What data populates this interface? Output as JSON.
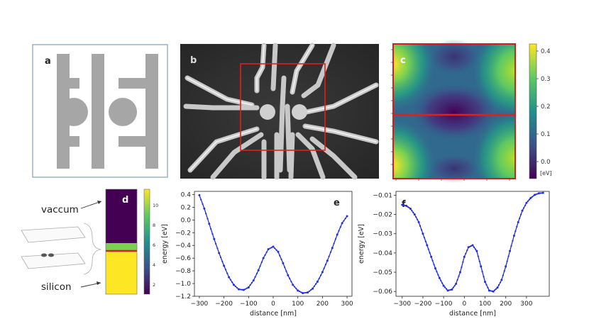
{
  "panels": {
    "a": {
      "label": "a"
    },
    "b": {
      "label": "b"
    },
    "c": {
      "label": "c",
      "colorbar_ticks": [
        "0.4",
        "0.3",
        "0.2",
        "0.1",
        "0.0"
      ],
      "unit": "[eV]"
    },
    "d": {
      "label": "d",
      "colorbar_ticks": [
        "10",
        "8",
        "6",
        "4",
        "2"
      ],
      "vacuum_label": "vaccum",
      "silicon_label": "silicon"
    },
    "e": {
      "label": "e"
    },
    "f": {
      "label": "f"
    }
  },
  "colors": {
    "gate_gray": "#a6a6a6",
    "frame_blue": "#7f9fb8",
    "highlight_red": "#e0201c",
    "curve_blue": "#1f2ee0",
    "viridis_dark": "#440154",
    "viridis_yellow": "#fde725"
  },
  "chart_data": [
    {
      "id": "e",
      "type": "line",
      "xlabel": "distance [nm]",
      "ylabel": "energy [eV]",
      "xlim": [
        -320,
        320
      ],
      "ylim": [
        -1.2,
        0.45
      ],
      "xticks": [
        -300,
        -200,
        -100,
        0,
        100,
        200,
        300
      ],
      "xtick_labels": [
        "−300",
        "−200",
        "−100",
        "0",
        "100",
        "200",
        "300"
      ],
      "yticks": [
        0.4,
        0.2,
        0.0,
        -0.2,
        -0.4,
        -0.6,
        -0.8,
        -1.0,
        -1.2
      ],
      "ytick_labels": [
        "0.4",
        "0.2",
        "0.0",
        "−0.2",
        "−0.4",
        "−0.6",
        "−0.8",
        "−1.0",
        "−1.2"
      ],
      "series": [
        {
          "x": [
            -300,
            -280,
            -260,
            -240,
            -220,
            -200,
            -180,
            -160,
            -140,
            -120,
            -100,
            -80,
            -60,
            -40,
            -20,
            0,
            20,
            40,
            60,
            80,
            100,
            120,
            140,
            160,
            180,
            200,
            220,
            240,
            260,
            280,
            300
          ],
          "values": [
            0.39,
            0.18,
            -0.06,
            -0.3,
            -0.52,
            -0.72,
            -0.9,
            -1.02,
            -1.09,
            -1.1,
            -1.06,
            -0.95,
            -0.79,
            -0.6,
            -0.46,
            -0.42,
            -0.5,
            -0.68,
            -0.87,
            -1.02,
            -1.11,
            -1.15,
            -1.14,
            -1.08,
            -0.97,
            -0.82,
            -0.64,
            -0.44,
            -0.23,
            -0.05,
            0.06
          ]
        }
      ]
    },
    {
      "id": "f",
      "type": "line",
      "xlabel": "distance [nm]",
      "ylabel": "energy [eV]",
      "xlim": [
        -330,
        410
      ],
      "ylim": [
        -0.0625,
        -0.008
      ],
      "xticks": [
        -300,
        -200,
        -100,
        0,
        100,
        200,
        300
      ],
      "xtick_labels": [
        "−300",
        "−200",
        "−100",
        "0",
        "100",
        "200",
        "300"
      ],
      "yticks": [
        -0.01,
        -0.02,
        -0.03,
        -0.04,
        -0.05,
        -0.06
      ],
      "ytick_labels": [
        "−0.01",
        "−0.02",
        "−0.03",
        "−0.04",
        "−0.05",
        "−0.06"
      ],
      "series": [
        {
          "x": [
            -300,
            -280,
            -260,
            -240,
            -220,
            -200,
            -180,
            -160,
            -140,
            -120,
            -100,
            -80,
            -60,
            -40,
            -20,
            0,
            20,
            40,
            60,
            80,
            100,
            120,
            140,
            160,
            180,
            200,
            220,
            240,
            260,
            280,
            300,
            320,
            340,
            360,
            380
          ],
          "values": [
            -0.015,
            -0.0155,
            -0.017,
            -0.02,
            -0.024,
            -0.03,
            -0.036,
            -0.042,
            -0.048,
            -0.053,
            -0.057,
            -0.0595,
            -0.059,
            -0.056,
            -0.05,
            -0.042,
            -0.037,
            -0.036,
            -0.039,
            -0.047,
            -0.055,
            -0.0595,
            -0.06,
            -0.058,
            -0.054,
            -0.047,
            -0.039,
            -0.031,
            -0.024,
            -0.018,
            -0.014,
            -0.0115,
            -0.0098,
            -0.009,
            -0.0088
          ]
        }
      ]
    }
  ]
}
